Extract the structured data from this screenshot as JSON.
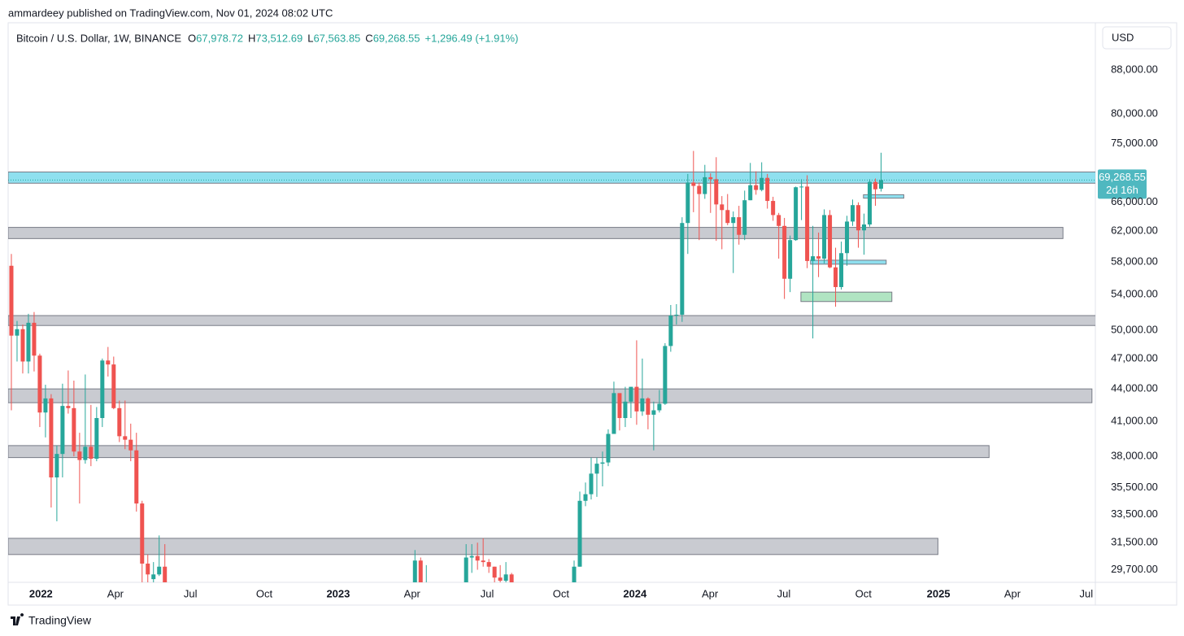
{
  "header": {
    "publisher": "ammardeey published on TradingView.com, Nov 01, 2024 08:02 UTC"
  },
  "chart_data": {
    "type": "candlestick",
    "symbol": "Bitcoin / U.S. Dollar, 1W, BINANCE",
    "ohlc": [
      {
        "key": "O",
        "value": "67,978.72"
      },
      {
        "key": "H",
        "value": "73,512.69"
      },
      {
        "key": "L",
        "value": "67,563.85"
      },
      {
        "key": "C",
        "value": "69,268.55"
      }
    ],
    "change": "+1,296.49 (+1.91%)",
    "currency": "USD",
    "price_label": "69,268.55",
    "countdown": "2d 16h",
    "up_color": "#26a69a",
    "down_color": "#ef5350",
    "log_scale": true,
    "xlim": [
      -0.57,
      190.7
    ],
    "ylim": [
      28900,
      97500
    ],
    "xticks": [
      {
        "value": 5.2,
        "label": "2022"
      },
      {
        "value": 18.3,
        "label": "Apr"
      },
      {
        "value": 31.5,
        "label": "Jul"
      },
      {
        "value": 44.5,
        "label": "Oct"
      },
      {
        "value": 57.5,
        "label": "2023"
      },
      {
        "value": 70.5,
        "label": "Apr"
      },
      {
        "value": 83.7,
        "label": "Jul"
      },
      {
        "value": 96.7,
        "label": "Oct"
      },
      {
        "value": 109.7,
        "label": "2024"
      },
      {
        "value": 122.9,
        "label": "Apr"
      },
      {
        "value": 135.9,
        "label": "Jul"
      },
      {
        "value": 149.9,
        "label": "Oct"
      },
      {
        "value": 163.1,
        "label": "2025"
      },
      {
        "value": 176.1,
        "label": "Apr"
      },
      {
        "value": 189.1,
        "label": "Jul"
      }
    ],
    "yticks": [
      {
        "value": 88000,
        "label": "88,000.00"
      },
      {
        "value": 80000,
        "label": "80,000.00"
      },
      {
        "value": 75000,
        "label": "75,000.00"
      },
      {
        "value": 66000,
        "label": "66,000.00"
      },
      {
        "value": 62000,
        "label": "62,000.00"
      },
      {
        "value": 58000,
        "label": "58,000.00"
      },
      {
        "value": 54000,
        "label": "54,000.00"
      },
      {
        "value": 50000,
        "label": "50,000.00"
      },
      {
        "value": 47000,
        "label": "47,000.00"
      },
      {
        "value": 44000,
        "label": "44,000.00"
      },
      {
        "value": 41000,
        "label": "41,000.00"
      },
      {
        "value": 38000,
        "label": "38,000.00"
      },
      {
        "value": 35500,
        "label": "35,500.00"
      },
      {
        "value": 33500,
        "label": "33,500.00"
      },
      {
        "value": 31500,
        "label": "31,500.00"
      },
      {
        "value": 29700,
        "label": "29,700.00"
      }
    ],
    "zones": [
      {
        "top": 70500,
        "bottom": 68800,
        "x_start": -0.57,
        "x_end": 191.4,
        "color": "#5fd3e8"
      },
      {
        "top": 62500,
        "bottom": 61000,
        "x_start": -0.57,
        "x_end": 185,
        "color": "#b2b5be"
      },
      {
        "top": 51600,
        "bottom": 50500,
        "x_start": -0.57,
        "x_end": 191.4,
        "color": "#b2b5be"
      },
      {
        "top": 44000,
        "bottom": 42700,
        "x_start": -0.57,
        "x_end": 190.1,
        "color": "#b2b5be"
      },
      {
        "top": 38900,
        "bottom": 37900,
        "x_start": -0.57,
        "x_end": 172,
        "color": "#b2b5be"
      },
      {
        "top": 31800,
        "bottom": 30700,
        "x_start": -0.57,
        "x_end": 163,
        "color": "#b2b5be"
      },
      {
        "top": 67100,
        "bottom": 66600,
        "x_start": 149.9,
        "x_end": 157,
        "color": "#5fd3e8"
      },
      {
        "top": 58200,
        "bottom": 57700,
        "x_start": 140.6,
        "x_end": 153.9,
        "color": "#5fd3e8"
      },
      {
        "top": 54300,
        "bottom": 53200,
        "x_start": 138.9,
        "x_end": 154.9,
        "color": "#8fd9a8"
      }
    ],
    "candles": [
      {
        "x": 0,
        "o": 57500,
        "h": 59000,
        "l": 42000,
        "c": 49400
      },
      {
        "x": 1,
        "o": 49400,
        "h": 51000,
        "l": 46700,
        "c": 50100
      },
      {
        "x": 2,
        "o": 50100,
        "h": 50600,
        "l": 45500,
        "c": 46700
      },
      {
        "x": 3,
        "o": 46700,
        "h": 51800,
        "l": 45500,
        "c": 50800
      },
      {
        "x": 4,
        "o": 50800,
        "h": 52000,
        "l": 45700,
        "c": 47300
      },
      {
        "x": 5,
        "o": 47300,
        "h": 47500,
        "l": 40500,
        "c": 41800
      },
      {
        "x": 6,
        "o": 41800,
        "h": 44400,
        "l": 39600,
        "c": 43100
      },
      {
        "x": 7,
        "o": 43100,
        "h": 43500,
        "l": 34000,
        "c": 36300
      },
      {
        "x": 8,
        "o": 36300,
        "h": 38900,
        "l": 33000,
        "c": 38200
      },
      {
        "x": 9,
        "o": 38200,
        "h": 44500,
        "l": 36300,
        "c": 42400
      },
      {
        "x": 10,
        "o": 42400,
        "h": 45800,
        "l": 41700,
        "c": 42200
      },
      {
        "x": 11,
        "o": 42200,
        "h": 44800,
        "l": 38000,
        "c": 38400
      },
      {
        "x": 12,
        "o": 38400,
        "h": 40000,
        "l": 34300,
        "c": 37700
      },
      {
        "x": 13,
        "o": 37700,
        "h": 45400,
        "l": 37400,
        "c": 38800
      },
      {
        "x": 14,
        "o": 38800,
        "h": 42500,
        "l": 37200,
        "c": 37800
      },
      {
        "x": 15,
        "o": 37800,
        "h": 42300,
        "l": 37600,
        "c": 41300
      },
      {
        "x": 16,
        "o": 41300,
        "h": 47000,
        "l": 40500,
        "c": 46800
      },
      {
        "x": 17,
        "o": 46800,
        "h": 48200,
        "l": 45200,
        "c": 46400
      },
      {
        "x": 18,
        "o": 46400,
        "h": 47200,
        "l": 42100,
        "c": 42200
      },
      {
        "x": 19,
        "o": 42200,
        "h": 42900,
        "l": 39200,
        "c": 39700
      },
      {
        "x": 20,
        "o": 39700,
        "h": 42900,
        "l": 38600,
        "c": 39400
      },
      {
        "x": 21,
        "o": 39400,
        "h": 40800,
        "l": 37600,
        "c": 38500
      },
      {
        "x": 22,
        "o": 38500,
        "h": 40000,
        "l": 33700,
        "c": 34300
      },
      {
        "x": 23,
        "o": 34300,
        "h": 34500,
        "l": 26700,
        "c": 30100
      },
      {
        "x": 24,
        "o": 30100,
        "h": 30700,
        "l": 28600,
        "c": 29400
      },
      {
        "x": 25,
        "o": 29100,
        "h": 30200,
        "l": 28000,
        "c": 29400
      },
      {
        "x": 26,
        "o": 29400,
        "h": 32000,
        "l": 29300,
        "c": 29900
      },
      {
        "x": 27,
        "o": 29900,
        "h": 31400,
        "l": 26600,
        "c": 26600
      },
      {
        "x": 70,
        "o": 28200,
        "h": 28800,
        "l": 27300,
        "c": 28300
      },
      {
        "x": 71,
        "o": 28300,
        "h": 31000,
        "l": 28000,
        "c": 30300
      },
      {
        "x": 72,
        "o": 30300,
        "h": 30500,
        "l": 27100,
        "c": 27600
      },
      {
        "x": 73,
        "o": 27600,
        "h": 30000,
        "l": 26900,
        "c": 28500
      },
      {
        "x": 80,
        "o": 26300,
        "h": 31400,
        "l": 26300,
        "c": 30500
      },
      {
        "x": 81,
        "o": 30500,
        "h": 31400,
        "l": 29500,
        "c": 30600
      },
      {
        "x": 82,
        "o": 30600,
        "h": 31500,
        "l": 29700,
        "c": 30300
      },
      {
        "x": 83,
        "o": 30300,
        "h": 31800,
        "l": 29900,
        "c": 30200
      },
      {
        "x": 84,
        "o": 30200,
        "h": 30400,
        "l": 29500,
        "c": 29900
      },
      {
        "x": 85,
        "o": 29900,
        "h": 29900,
        "l": 28900,
        "c": 29200
      },
      {
        "x": 86,
        "o": 29200,
        "h": 30000,
        "l": 28600,
        "c": 29000
      },
      {
        "x": 87,
        "o": 29000,
        "h": 30200,
        "l": 28800,
        "c": 29400
      },
      {
        "x": 88,
        "o": 29400,
        "h": 29500,
        "l": 25200,
        "c": 26100
      },
      {
        "x": 98,
        "o": 27900,
        "h": 27900,
        "l": 26500,
        "c": 27200
      },
      {
        "x": 99,
        "o": 27200,
        "h": 30300,
        "l": 26900,
        "c": 29900
      },
      {
        "x": 100,
        "o": 29900,
        "h": 35200,
        "l": 29900,
        "c": 34500
      },
      {
        "x": 101,
        "o": 34500,
        "h": 35900,
        "l": 34100,
        "c": 35000
      },
      {
        "x": 102,
        "o": 35000,
        "h": 37900,
        "l": 34600,
        "c": 36600
      },
      {
        "x": 103,
        "o": 36600,
        "h": 37900,
        "l": 34800,
        "c": 37400
      },
      {
        "x": 104,
        "o": 37400,
        "h": 38400,
        "l": 35600,
        "c": 37500
      },
      {
        "x": 105,
        "o": 37500,
        "h": 40300,
        "l": 37200,
        "c": 39900
      },
      {
        "x": 106,
        "o": 39900,
        "h": 44700,
        "l": 39900,
        "c": 43600
      },
      {
        "x": 107,
        "o": 43600,
        "h": 43400,
        "l": 40200,
        "c": 41300
      },
      {
        "x": 108,
        "o": 41300,
        "h": 44200,
        "l": 40500,
        "c": 42800
      },
      {
        "x": 109,
        "o": 42800,
        "h": 43800,
        "l": 41300,
        "c": 44200
      },
      {
        "x": 110,
        "o": 44200,
        "h": 48900,
        "l": 40700,
        "c": 41900
      },
      {
        "x": 111,
        "o": 41900,
        "h": 47000,
        "l": 41500,
        "c": 43100
      },
      {
        "x": 112,
        "o": 43100,
        "h": 43200,
        "l": 40300,
        "c": 41600
      },
      {
        "x": 113,
        "o": 41600,
        "h": 42800,
        "l": 38500,
        "c": 42000
      },
      {
        "x": 114,
        "o": 42000,
        "h": 43900,
        "l": 41800,
        "c": 42600
      },
      {
        "x": 115,
        "o": 42600,
        "h": 48600,
        "l": 42500,
        "c": 48300
      },
      {
        "x": 116,
        "o": 48300,
        "h": 52800,
        "l": 47700,
        "c": 51600
      },
      {
        "x": 117,
        "o": 51600,
        "h": 52900,
        "l": 50600,
        "c": 51700
      },
      {
        "x": 118,
        "o": 51700,
        "h": 63900,
        "l": 50900,
        "c": 63100
      },
      {
        "x": 119,
        "o": 63100,
        "h": 70200,
        "l": 59000,
        "c": 68900
      },
      {
        "x": 120,
        "o": 68900,
        "h": 73800,
        "l": 64600,
        "c": 68400
      },
      {
        "x": 121,
        "o": 68400,
        "h": 68900,
        "l": 60800,
        "c": 67200
      },
      {
        "x": 122,
        "o": 67200,
        "h": 71600,
        "l": 66500,
        "c": 69700
      },
      {
        "x": 123,
        "o": 69700,
        "h": 70300,
        "l": 64500,
        "c": 69400
      },
      {
        "x": 124,
        "o": 69400,
        "h": 72800,
        "l": 60700,
        "c": 65700
      },
      {
        "x": 125,
        "o": 65700,
        "h": 66900,
        "l": 59600,
        "c": 64900
      },
      {
        "x": 126,
        "o": 64900,
        "h": 67200,
        "l": 62800,
        "c": 63100
      },
      {
        "x": 127,
        "o": 63100,
        "h": 64700,
        "l": 56600,
        "c": 63900
      },
      {
        "x": 128,
        "o": 63900,
        "h": 65500,
        "l": 60200,
        "c": 61500
      },
      {
        "x": 129,
        "o": 61500,
        "h": 67700,
        "l": 60800,
        "c": 66300
      },
      {
        "x": 130,
        "o": 66300,
        "h": 71900,
        "l": 66300,
        "c": 68500
      },
      {
        "x": 131,
        "o": 68500,
        "h": 70600,
        "l": 67100,
        "c": 67800
      },
      {
        "x": 132,
        "o": 67800,
        "h": 72000,
        "l": 67600,
        "c": 69600
      },
      {
        "x": 133,
        "o": 69600,
        "h": 70200,
        "l": 65100,
        "c": 66200
      },
      {
        "x": 134,
        "o": 66200,
        "h": 66800,
        "l": 63400,
        "c": 64200
      },
      {
        "x": 135,
        "o": 64200,
        "h": 64500,
        "l": 58400,
        "c": 62700
      },
      {
        "x": 136,
        "o": 62700,
        "h": 63800,
        "l": 53500,
        "c": 55900
      },
      {
        "x": 137,
        "o": 55900,
        "h": 61400,
        "l": 54300,
        "c": 60800
      },
      {
        "x": 138,
        "o": 60800,
        "h": 68300,
        "l": 60700,
        "c": 68200
      },
      {
        "x": 139,
        "o": 68200,
        "h": 69400,
        "l": 63500,
        "c": 68300
      },
      {
        "x": 140,
        "o": 68300,
        "h": 70000,
        "l": 57200,
        "c": 58100
      },
      {
        "x": 141,
        "o": 58100,
        "h": 62700,
        "l": 49100,
        "c": 58700
      },
      {
        "x": 142,
        "o": 58700,
        "h": 61800,
        "l": 56100,
        "c": 58400
      },
      {
        "x": 143,
        "o": 58400,
        "h": 65000,
        "l": 57800,
        "c": 64200
      },
      {
        "x": 144,
        "o": 64200,
        "h": 64900,
        "l": 57200,
        "c": 57300
      },
      {
        "x": 145,
        "o": 57300,
        "h": 59800,
        "l": 52600,
        "c": 54900
      },
      {
        "x": 146,
        "o": 54900,
        "h": 60600,
        "l": 54600,
        "c": 59100
      },
      {
        "x": 147,
        "o": 59100,
        "h": 64100,
        "l": 57500,
        "c": 63300
      },
      {
        "x": 148,
        "o": 63300,
        "h": 66400,
        "l": 62700,
        "c": 65600
      },
      {
        "x": 149,
        "o": 65600,
        "h": 66000,
        "l": 59800,
        "c": 62100
      },
      {
        "x": 150,
        "o": 62100,
        "h": 64400,
        "l": 58900,
        "c": 62900
      },
      {
        "x": 151,
        "o": 62900,
        "h": 69400,
        "l": 62600,
        "c": 69000
      },
      {
        "x": 152,
        "o": 69000,
        "h": 69500,
        "l": 65500,
        "c": 67900
      },
      {
        "x": 153,
        "o": 67978.72,
        "h": 73512.69,
        "l": 67563.85,
        "c": 69268.55
      }
    ]
  },
  "footer": {
    "brand": "TradingView"
  }
}
